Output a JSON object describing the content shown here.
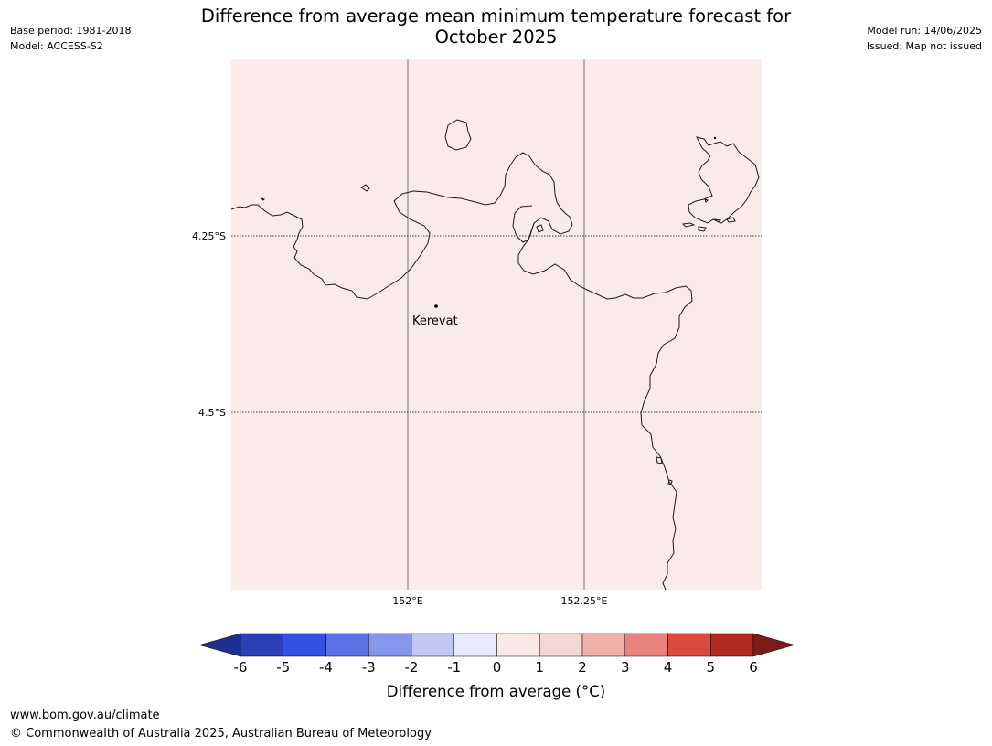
{
  "header": {
    "title_line1": "Difference from average mean minimum temperature forecast for",
    "title_line2": "October 2025",
    "base_period": "Base period: 1981-2018",
    "model": "Model: ACCESS-S2",
    "model_run": "Model run: 14/06/2025",
    "issued": "Issued: Map not issued"
  },
  "map": {
    "fill_color": "#fbeaea",
    "lat_labels": [
      "4.25°S",
      "4.5°S"
    ],
    "lon_labels": [
      "152°E",
      "152.25°E"
    ],
    "place": {
      "name": "Kerevat"
    }
  },
  "colorbar": {
    "label": "Difference from average (°C)",
    "ticks": [
      "-6",
      "-5",
      "-4",
      "-3",
      "-2",
      "-1",
      "0",
      "1",
      "2",
      "3",
      "4",
      "5",
      "6"
    ],
    "colors": [
      "#1f2f8f",
      "#2a3fb8",
      "#3251e0",
      "#5b72e6",
      "#8596ec",
      "#c0c7f4",
      "#e9ebfc",
      "#fce9e6",
      "#f2d7d2",
      "#efb0aa",
      "#e8827c",
      "#dc4a3f",
      "#b0281f",
      "#7a1c18"
    ]
  },
  "footer": {
    "url": "www.bom.gov.au/climate",
    "copyright": "© Commonwealth of Australia 2025, Australian Bureau of Meteorology"
  }
}
